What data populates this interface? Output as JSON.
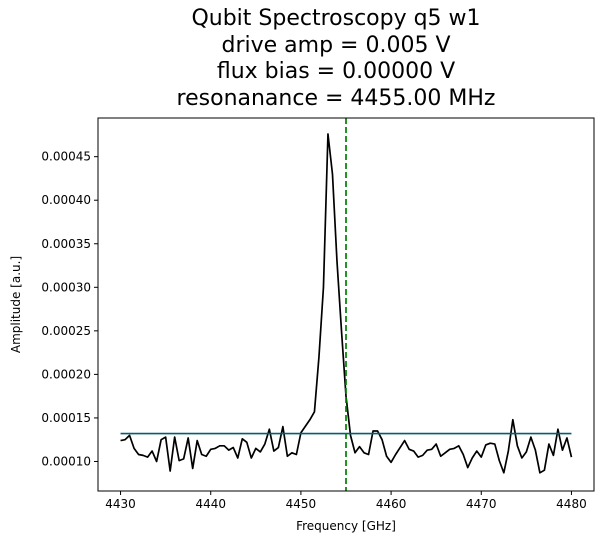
{
  "chart_data": {
    "type": "line",
    "title_lines": [
      "Qubit Spectroscopy q5 w1",
      "drive amp = 0.005 V",
      "flux bias = 0.00000 V",
      "resonanance = 4455.00 MHz"
    ],
    "xlabel": "Frequency [GHz]",
    "ylabel": "Amplitude [a.u.]",
    "xlim": [
      4427.5,
      4482.5
    ],
    "ylim": [
      6.61e-05,
      0.0004944
    ],
    "xticks": [
      4430,
      4440,
      4450,
      4460,
      4470,
      4480
    ],
    "yticks": [
      0.0001,
      0.00015,
      0.0002,
      0.00025,
      0.0003,
      0.00035,
      0.0004,
      0.00045
    ],
    "ytick_labels": [
      "0.00010",
      "0.00015",
      "0.00020",
      "0.00025",
      "0.00030",
      "0.00035",
      "0.00040",
      "0.00045"
    ],
    "grid": false,
    "colors": {
      "data": "#000000",
      "fit": "#005f73",
      "resonance_line": "#008000"
    },
    "series": [
      {
        "role": "data",
        "x": [
          4430.0,
          4430.5,
          4431.0,
          4431.5,
          4432.0,
          4432.5,
          4433.0,
          4433.5,
          4434.0,
          4434.5,
          4435.0,
          4435.5,
          4436.0,
          4436.5,
          4437.0,
          4437.5,
          4438.0,
          4438.5,
          4439.0,
          4439.5,
          4440.0,
          4440.5,
          4441.0,
          4441.5,
          4442.0,
          4442.5,
          4443.0,
          4443.5,
          4444.0,
          4444.5,
          4445.0,
          4445.5,
          4446.0,
          4446.5,
          4447.0,
          4447.5,
          4448.0,
          4448.5,
          4449.0,
          4449.5,
          4450.0,
          4451.0,
          4451.5,
          4452.0,
          4452.5,
          4453.0,
          4453.5,
          4454.0,
          4454.5,
          4455.0,
          4455.5,
          4456.0,
          4456.5,
          4457.0,
          4457.5,
          4458.0,
          4458.5,
          4459.0,
          4459.5,
          4460.0,
          4460.5,
          4461.0,
          4461.5,
          4462.0,
          4462.5,
          4463.0,
          4463.5,
          4464.0,
          4464.5,
          4465.0,
          4465.5,
          4466.0,
          4466.5,
          4467.0,
          4467.5,
          4468.0,
          4468.5,
          4469.0,
          4469.5,
          4470.0,
          4470.5,
          4471.0,
          4471.5,
          4472.0,
          4472.5,
          4473.0,
          4473.5,
          4474.0,
          4474.5,
          4475.0,
          4475.5,
          4476.0,
          4476.5,
          4477.0,
          4477.5,
          4478.0,
          4478.5,
          4479.0,
          4479.5,
          4480.0
        ],
        "y": [
          0.000124,
          0.000125,
          0.00013,
          0.000115,
          0.000108,
          0.000107,
          0.000105,
          0.000112,
          0.0001,
          0.000125,
          0.000128,
          8.9e-05,
          0.000128,
          0.000101,
          0.000103,
          0.000127,
          9.2e-05,
          0.000124,
          0.000108,
          0.000106,
          0.000114,
          0.000115,
          0.000118,
          0.000118,
          0.000113,
          0.000116,
          0.000104,
          0.000126,
          0.000122,
          0.000104,
          0.000115,
          0.000111,
          0.00012,
          0.000137,
          0.000112,
          0.000116,
          0.00014,
          0.000106,
          0.00011,
          0.000108,
          0.000133,
          0.000148,
          0.000157,
          0.00022,
          0.0003,
          0.000476,
          0.00043,
          0.00033,
          0.00025,
          0.000175,
          0.00013,
          0.00011,
          0.000117,
          0.00011,
          0.000108,
          0.000135,
          0.000135,
          0.000125,
          0.000106,
          9.9e-05,
          0.000108,
          0.000116,
          0.000124,
          0.000114,
          0.000112,
          0.000105,
          0.000107,
          0.000113,
          0.000114,
          0.00012,
          0.000106,
          0.00011,
          0.000114,
          0.000115,
          0.000118,
          0.000108,
          9.3e-05,
          0.000104,
          0.000112,
          0.000105,
          0.000119,
          0.000121,
          0.00012,
          0.000101,
          8.7e-05,
          0.000112,
          0.000148,
          0.000118,
          0.000104,
          0.000111,
          0.000128,
          0.000113,
          8.7e-05,
          9e-05,
          0.00012,
          0.000107,
          0.000137,
          0.000113,
          0.000127,
          0.000105
        ]
      },
      {
        "role": "fit",
        "x": [
          4430.0,
          4480.0
        ],
        "y": [
          0.000132,
          0.000132
        ]
      }
    ],
    "resonance_x": 4455.0
  }
}
